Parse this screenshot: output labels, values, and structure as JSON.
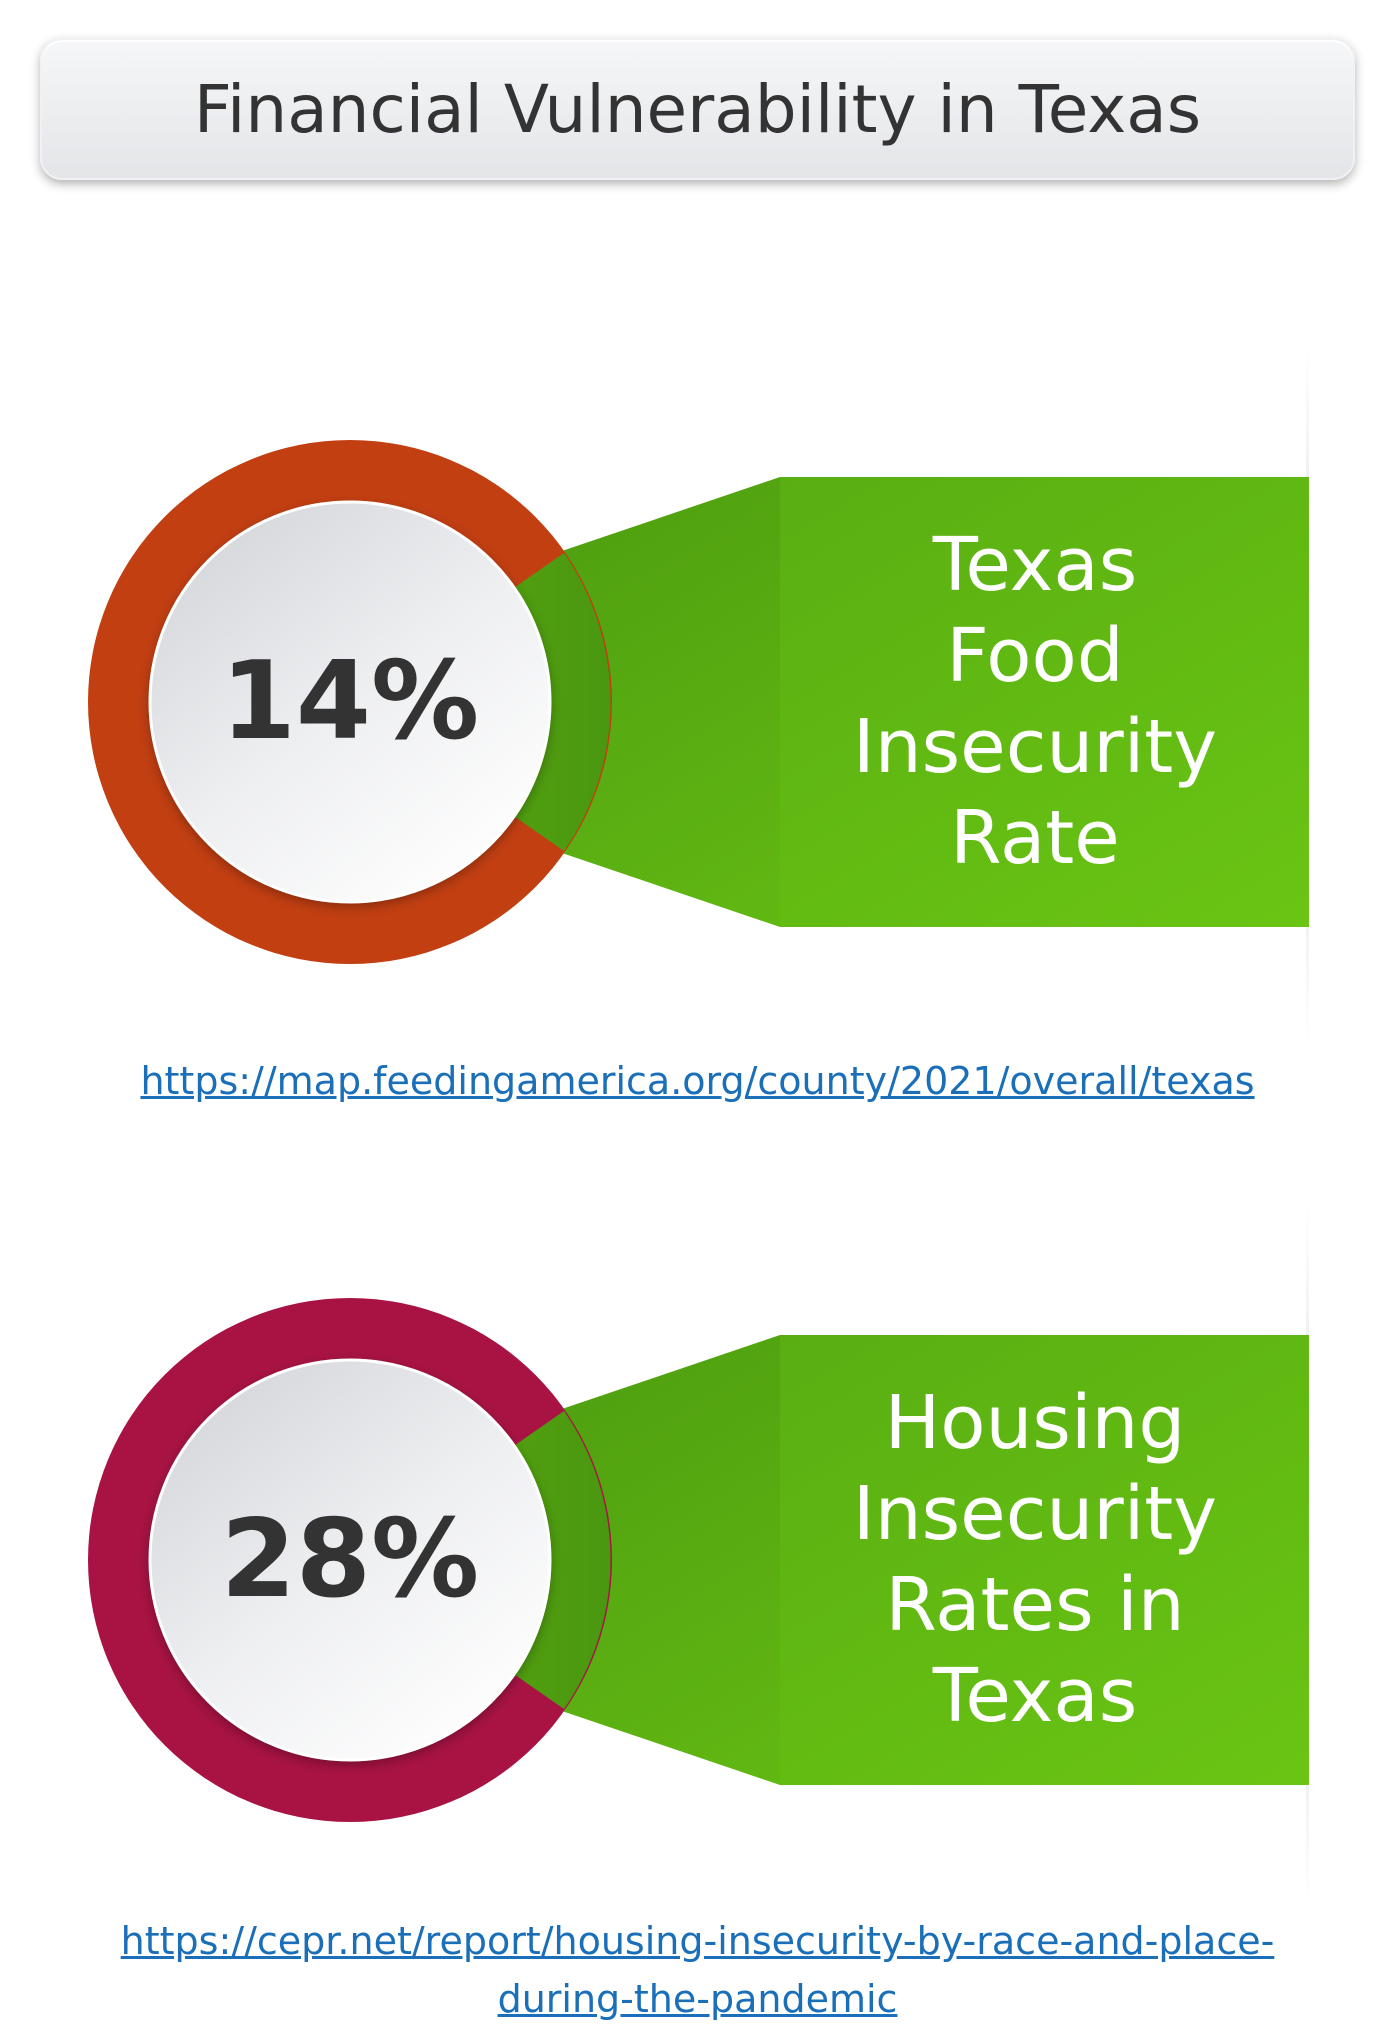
{
  "title": "Financial Vulnerability in Texas",
  "colors": {
    "green_dark": "#4e9e10",
    "green_light": "#6cc614",
    "orange_ring": "#c23f12",
    "crimson_ring": "#a81343",
    "link": "#1a6fb8",
    "text_dark": "#333333"
  },
  "stats": [
    {
      "value": "14%",
      "label_lines": [
        "Texas",
        "Food",
        "Insecurity",
        "Rate"
      ],
      "source_lines": [
        "https://map.feedingamerica.org/county/2021/overall/texas"
      ]
    },
    {
      "value": "28%",
      "label_lines": [
        "Housing",
        "Insecurity",
        "Rates in",
        "Texas"
      ],
      "source_lines": [
        "https://cepr.net/report/housing-insecurity-by-race-and-place-",
        "during-the-pandemic"
      ]
    }
  ]
}
